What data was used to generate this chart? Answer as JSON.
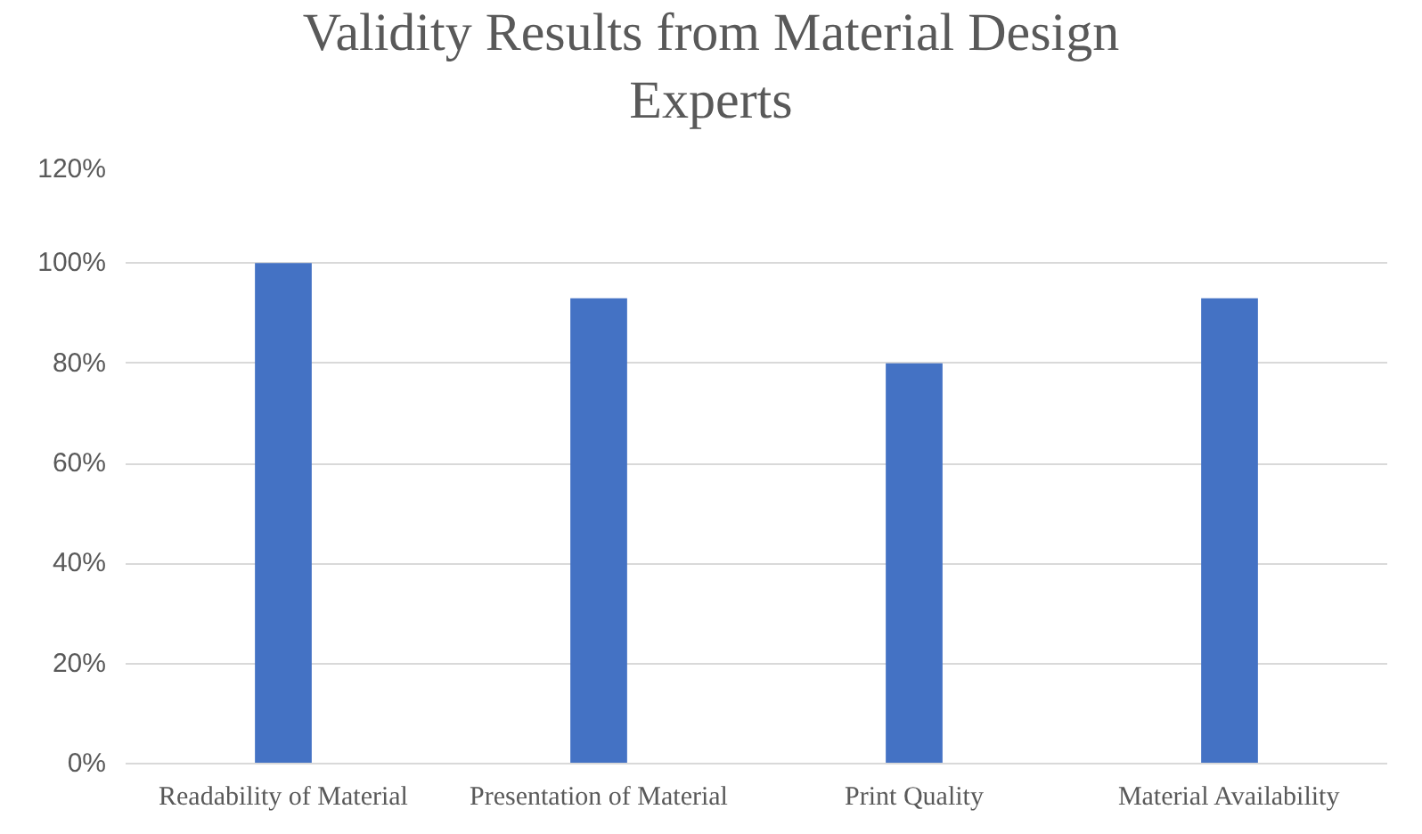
{
  "chart_data": {
    "type": "bar",
    "title": "Validity Results from Material Design\nExperts",
    "categories": [
      "Readability of Material",
      "Presentation of Material",
      "Print Quality",
      "Material Availability"
    ],
    "values": [
      100,
      93,
      80,
      93
    ],
    "color": "#4472c4",
    "ylim": [
      0,
      120
    ],
    "yticks": [
      {
        "value": 0,
        "label": "0%"
      },
      {
        "value": 20,
        "label": "20%"
      },
      {
        "value": 40,
        "label": "40%"
      },
      {
        "value": 60,
        "label": "60%"
      },
      {
        "value": 80,
        "label": "80%"
      },
      {
        "value": 100,
        "label": "100%"
      },
      {
        "value": 120,
        "label": "120%"
      }
    ],
    "grid": "y"
  }
}
